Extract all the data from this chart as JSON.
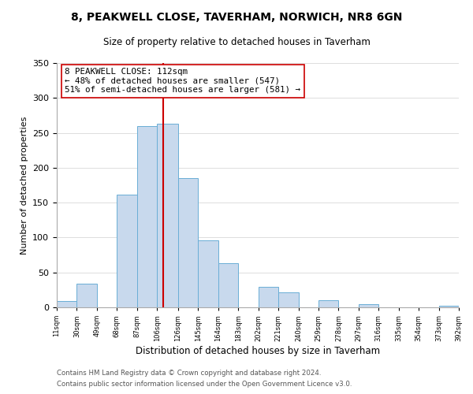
{
  "title": "8, PEAKWELL CLOSE, TAVERHAM, NORWICH, NR8 6GN",
  "subtitle": "Size of property relative to detached houses in Taverham",
  "xlabel": "Distribution of detached houses by size in Taverham",
  "ylabel": "Number of detached properties",
  "bar_edges": [
    11,
    30,
    49,
    68,
    87,
    106,
    126,
    145,
    164,
    183,
    202,
    221,
    240,
    259,
    278,
    297,
    316,
    335,
    354,
    373,
    392
  ],
  "bar_heights": [
    9,
    34,
    0,
    162,
    260,
    263,
    185,
    96,
    63,
    0,
    29,
    21,
    0,
    10,
    0,
    5,
    0,
    0,
    0,
    2
  ],
  "bar_color": "#c8d9ed",
  "bar_edgecolor": "#6aaed6",
  "vline_x": 112,
  "vline_color": "#cc0000",
  "annotation_line1": "8 PEAKWELL CLOSE: 112sqm",
  "annotation_line2": "← 48% of detached houses are smaller (547)",
  "annotation_line3": "51% of semi-detached houses are larger (581) →",
  "annotation_box_color": "#ffffff",
  "annotation_box_edgecolor": "#cc0000",
  "ylim": [
    0,
    350
  ],
  "yticks": [
    0,
    50,
    100,
    150,
    200,
    250,
    300,
    350
  ],
  "tick_labels": [
    "11sqm",
    "30sqm",
    "49sqm",
    "68sqm",
    "87sqm",
    "106sqm",
    "126sqm",
    "145sqm",
    "164sqm",
    "183sqm",
    "202sqm",
    "221sqm",
    "240sqm",
    "259sqm",
    "278sqm",
    "297sqm",
    "316sqm",
    "335sqm",
    "354sqm",
    "373sqm",
    "392sqm"
  ],
  "footer_line1": "Contains HM Land Registry data © Crown copyright and database right 2024.",
  "footer_line2": "Contains public sector information licensed under the Open Government Licence v3.0.",
  "background_color": "#ffffff",
  "grid_color": "#d8d8d8"
}
